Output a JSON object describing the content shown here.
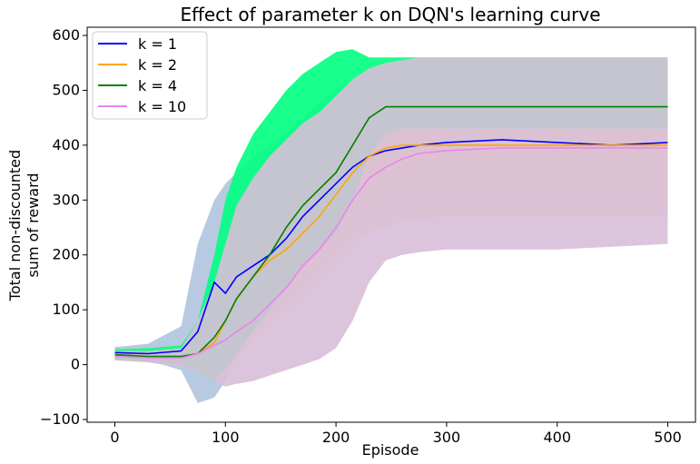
{
  "chart_data": {
    "type": "line",
    "title": "Effect of parameter k on DQN's learning curve",
    "xlabel": "Episode",
    "ylabel_lines": [
      "Total non-discounted",
      "sum of reward"
    ],
    "xlim": [
      -25,
      525
    ],
    "ylim": [
      -105,
      615
    ],
    "xticks": [
      0,
      100,
      200,
      300,
      400,
      500
    ],
    "yticks": [
      -100,
      0,
      100,
      200,
      300,
      400,
      500,
      600
    ],
    "grid": false,
    "legend_position": "top-left",
    "series": [
      {
        "name": "k = 1",
        "color": "#0000ff",
        "band_color": "#b0c4de",
        "x": [
          0,
          30,
          60,
          75,
          90,
          100,
          110,
          125,
          140,
          155,
          170,
          185,
          200,
          215,
          230,
          245,
          260,
          275,
          300,
          350,
          400,
          450,
          500
        ],
        "mean": [
          22,
          20,
          25,
          60,
          150,
          130,
          160,
          180,
          200,
          230,
          270,
          300,
          330,
          360,
          380,
          390,
          395,
          400,
          405,
          410,
          405,
          400,
          405
        ],
        "lower": [
          12,
          8,
          -10,
          -70,
          -60,
          -30,
          20,
          60,
          100,
          140,
          180,
          220,
          250,
          280,
          300,
          310,
          320,
          325,
          330,
          330,
          330,
          325,
          330
        ],
        "upper": [
          32,
          38,
          70,
          220,
          300,
          330,
          350,
          380,
          400,
          420,
          450,
          480,
          500,
          520,
          530,
          540,
          545,
          550,
          550,
          555,
          555,
          555,
          555
        ]
      },
      {
        "name": "k = 2",
        "color": "#ffa500",
        "band_color": "#ffd9a0",
        "x": [
          0,
          30,
          60,
          75,
          90,
          100,
          110,
          125,
          140,
          155,
          170,
          185,
          200,
          215,
          230,
          245,
          260,
          275,
          300,
          350,
          400,
          450,
          500
        ],
        "mean": [
          18,
          15,
          15,
          20,
          40,
          80,
          120,
          160,
          190,
          210,
          240,
          270,
          310,
          350,
          380,
          395,
          400,
          400,
          400,
          400,
          400,
          400,
          400
        ],
        "lower": [
          8,
          5,
          0,
          -10,
          -30,
          -20,
          10,
          40,
          70,
          100,
          130,
          160,
          190,
          220,
          240,
          250,
          260,
          265,
          270,
          270,
          270,
          270,
          270
        ],
        "upper": [
          28,
          30,
          35,
          70,
          150,
          220,
          280,
          320,
          340,
          370,
          400,
          430,
          460,
          490,
          510,
          520,
          530,
          535,
          540,
          540,
          540,
          540,
          540
        ]
      },
      {
        "name": "k = 4",
        "color": "#008000",
        "band_color": "#00ff7f",
        "x": [
          0,
          30,
          60,
          75,
          90,
          100,
          110,
          125,
          140,
          155,
          170,
          185,
          200,
          215,
          230,
          245,
          260,
          275,
          300,
          350,
          400,
          450,
          500
        ],
        "mean": [
          18,
          15,
          15,
          20,
          50,
          80,
          120,
          160,
          200,
          250,
          290,
          320,
          350,
          400,
          450,
          470,
          470,
          470,
          470,
          470,
          470,
          470,
          470
        ],
        "lower": [
          8,
          5,
          0,
          -10,
          -30,
          -10,
          20,
          60,
          100,
          140,
          180,
          210,
          240,
          300,
          380,
          420,
          430,
          430,
          430,
          430,
          430,
          430,
          430
        ],
        "upper": [
          28,
          30,
          35,
          80,
          200,
          300,
          360,
          420,
          460,
          500,
          530,
          550,
          570,
          575,
          560,
          560,
          560,
          560,
          560,
          560,
          560,
          560,
          560
        ]
      },
      {
        "name": "k = 10",
        "color": "#ee82ee",
        "band_color": "#d8bfd8",
        "x": [
          0,
          30,
          60,
          75,
          90,
          100,
          110,
          125,
          140,
          155,
          170,
          185,
          200,
          215,
          230,
          245,
          260,
          275,
          300,
          350,
          400,
          450,
          500
        ],
        "mean": [
          15,
          12,
          12,
          20,
          35,
          45,
          60,
          80,
          110,
          140,
          180,
          210,
          250,
          300,
          340,
          360,
          375,
          385,
          390,
          395,
          395,
          395,
          395
        ],
        "lower": [
          8,
          4,
          -5,
          -10,
          -30,
          -40,
          -35,
          -30,
          -20,
          -10,
          0,
          10,
          30,
          80,
          150,
          190,
          200,
          205,
          210,
          210,
          210,
          215,
          220
        ],
        "upper": [
          25,
          25,
          30,
          80,
          150,
          220,
          290,
          340,
          380,
          410,
          440,
          460,
          490,
          520,
          540,
          550,
          555,
          560,
          560,
          560,
          560,
          560,
          560
        ]
      }
    ]
  }
}
